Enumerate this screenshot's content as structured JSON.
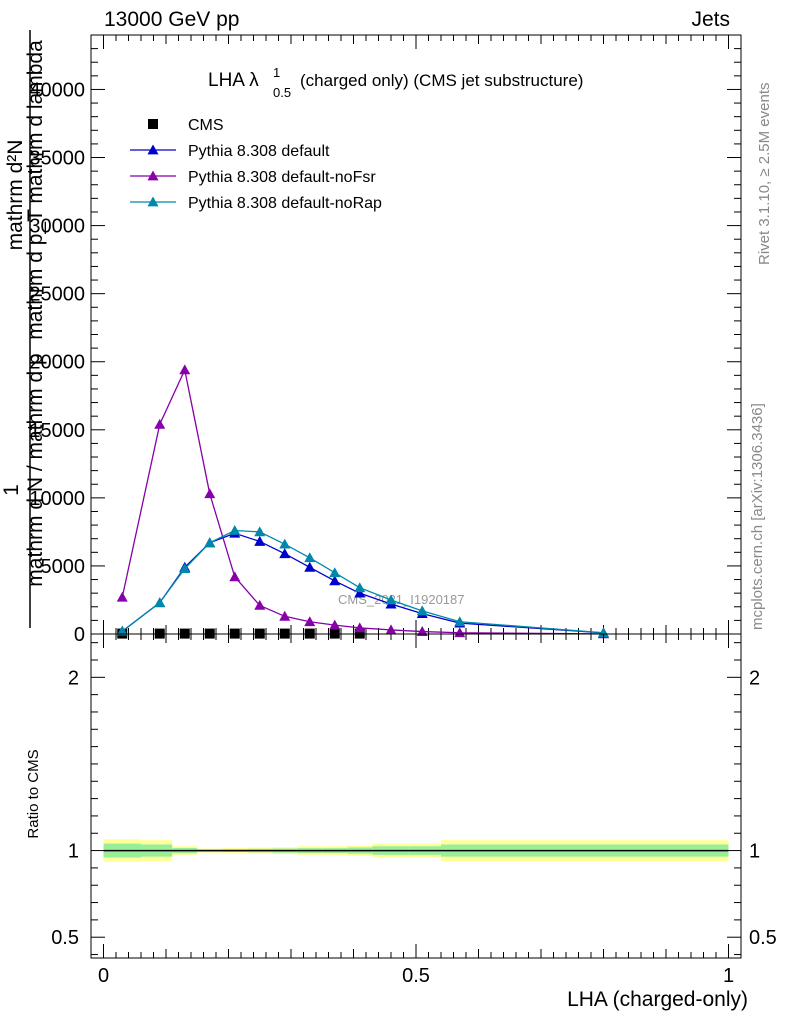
{
  "header": {
    "left": "13000 GeV pp",
    "right": "Jets"
  },
  "side": {
    "upper": "Rivet 3.1.10, ≥ 2.5M events",
    "lower": "mcplots.cern.ch [arXiv:1306.3436]"
  },
  "chart_data": {
    "type": "line",
    "title": "LHA λ",
    "title_sup": "1",
    "title_sub": "0.5",
    "title_rest": "(charged only) (CMS jet substructure)",
    "watermark": "CMS_2021_I1920187",
    "xlabel": "LHA (charged-only)",
    "ylabel_num": "mathrm d²N",
    "ylabel_den": "mathrm d p_T mathrm d lambda",
    "ylabel_pre": "1",
    "ylabel_mid": "mathrm d N / mathrm d p",
    "xlim": [
      -0.02,
      1.02
    ],
    "ylim": [
      0,
      44000
    ],
    "x_ticks": [
      0,
      0.5,
      1
    ],
    "x_tick_labels": [
      "0",
      "0.5",
      "1"
    ],
    "y_ticks": [
      0,
      5000,
      10000,
      15000,
      20000,
      25000,
      30000,
      35000,
      40000
    ],
    "y_tick_labels": [
      "0",
      "5000",
      "10000",
      "15000",
      "20000",
      "25000",
      "30000",
      "35000",
      "40000"
    ],
    "legend_position": "top-left",
    "series": [
      {
        "name": "CMS",
        "color": "#000000",
        "marker": "square",
        "x": [
          0.03,
          0.09,
          0.13,
          0.17,
          0.21,
          0.25,
          0.29,
          0.33,
          0.37,
          0.41
        ],
        "y": [
          30,
          30,
          30,
          30,
          30,
          30,
          30,
          30,
          30,
          30
        ]
      },
      {
        "name": "Pythia 8.308 default",
        "color": "#0000cc",
        "marker": "triangle",
        "x": [
          0.03,
          0.09,
          0.13,
          0.17,
          0.21,
          0.25,
          0.29,
          0.33,
          0.37,
          0.41,
          0.46,
          0.51,
          0.57,
          0.8
        ],
        "y": [
          200,
          2300,
          4900,
          6700,
          7400,
          6800,
          5900,
          4900,
          3900,
          3000,
          2200,
          1500,
          800,
          80
        ]
      },
      {
        "name": "Pythia 8.308 default-noFsr",
        "color": "#8800aa",
        "marker": "triangle",
        "x": [
          0.03,
          0.09,
          0.13,
          0.17,
          0.21,
          0.25,
          0.29,
          0.33,
          0.37,
          0.41,
          0.46,
          0.51,
          0.57,
          0.8
        ],
        "y": [
          2700,
          15400,
          19400,
          10300,
          4200,
          2100,
          1300,
          900,
          650,
          450,
          300,
          180,
          90,
          10
        ]
      },
      {
        "name": "Pythia 8.308 default-noRap",
        "color": "#0088aa",
        "marker": "triangle",
        "x": [
          0.03,
          0.09,
          0.13,
          0.17,
          0.21,
          0.25,
          0.29,
          0.33,
          0.37,
          0.41,
          0.46,
          0.51,
          0.57,
          0.8
        ],
        "y": [
          210,
          2300,
          4800,
          6700,
          7600,
          7500,
          6600,
          5600,
          4500,
          3400,
          2500,
          1700,
          900,
          90
        ]
      }
    ],
    "ratio": {
      "ylabel": "Ratio to CMS",
      "ylim": [
        0.38,
        2.25
      ],
      "y_ticks": [
        0.5,
        1,
        2
      ],
      "y_tick_labels": [
        "0.5",
        "1",
        "2"
      ],
      "band_edges": [
        0,
        0.06,
        0.11,
        0.15,
        0.19,
        0.23,
        0.27,
        0.31,
        0.35,
        0.39,
        0.43,
        0.49,
        0.54,
        0.6,
        1.0
      ],
      "outer_half_width": [
        0.065,
        0.06,
        0.025,
        0.012,
        0.015,
        0.018,
        0.02,
        0.025,
        0.025,
        0.03,
        0.04,
        0.04,
        0.06,
        0.06
      ],
      "inner_half_width": [
        0.04,
        0.035,
        0.015,
        0.007,
        0.008,
        0.01,
        0.012,
        0.014,
        0.014,
        0.018,
        0.025,
        0.025,
        0.035,
        0.035
      ],
      "outer_color": "#ffff99",
      "inner_color": "#99ee99"
    }
  }
}
